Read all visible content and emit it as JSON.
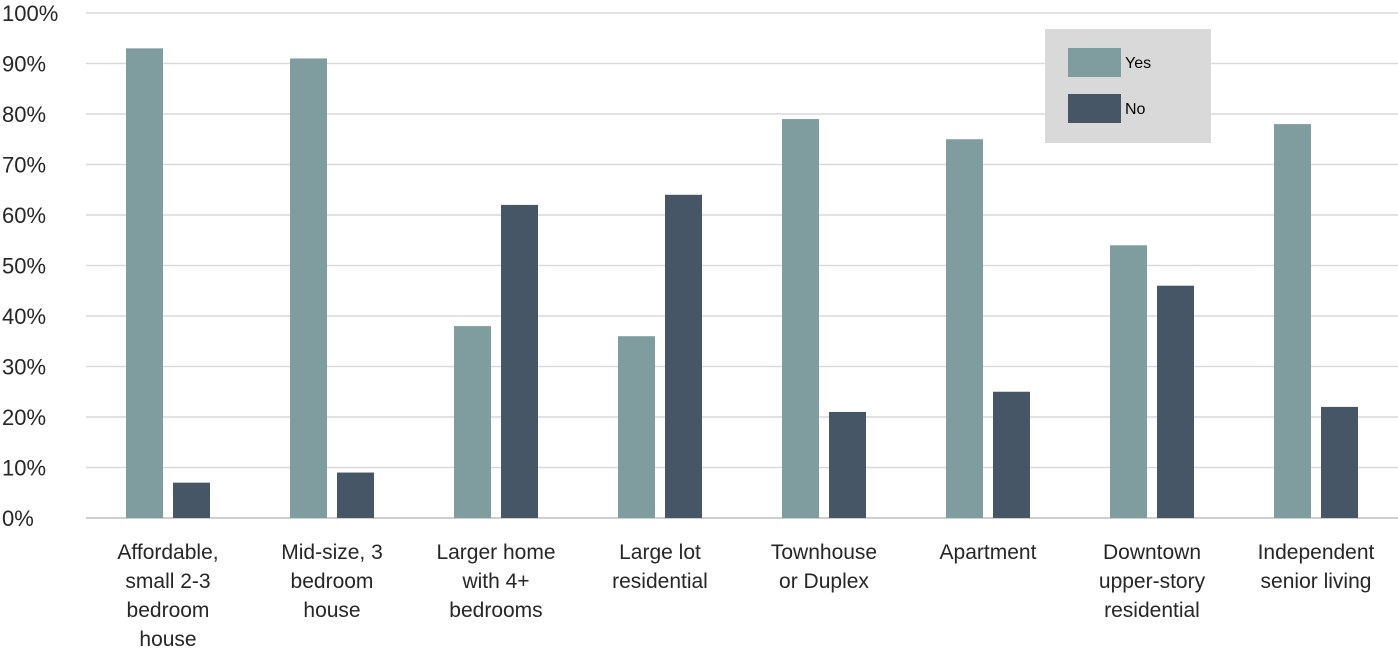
{
  "chart_data": {
    "type": "bar",
    "categories": [
      "Affordable, small 2-3 bedroom house",
      "Mid-size, 3 bedroom house",
      "Larger home with 4+ bedrooms",
      "Large lot residential",
      "Townhouse or Duplex",
      "Apartment",
      "Downtown upper-story residential",
      "Independent senior living"
    ],
    "category_lines": [
      [
        "Affordable,",
        "small 2-3",
        "bedroom",
        "house"
      ],
      [
        "Mid-size, 3",
        "bedroom",
        "house"
      ],
      [
        "Larger home",
        "with 4+",
        "bedrooms"
      ],
      [
        "Large lot",
        "residential"
      ],
      [
        "Townhouse",
        "or Duplex"
      ],
      [
        "Apartment"
      ],
      [
        "Downtown",
        "upper-story",
        "residential"
      ],
      [
        "Independent",
        "senior living"
      ]
    ],
    "series": [
      {
        "name": "Yes",
        "color": "#7f9c9e",
        "values": [
          93,
          91,
          38,
          36,
          79,
          75,
          54,
          78
        ]
      },
      {
        "name": "No",
        "color": "#475667",
        "values": [
          7,
          9,
          62,
          64,
          21,
          25,
          46,
          22
        ]
      }
    ],
    "ylim": [
      0,
      100
    ],
    "yticks": [
      "0%",
      "10%",
      "20%",
      "30%",
      "40%",
      "50%",
      "60%",
      "70%",
      "80%",
      "90%",
      "100%"
    ],
    "grid": true,
    "legend": {
      "position": "top-right",
      "background": "#d9d9d9"
    },
    "title": "",
    "xlabel": "",
    "ylabel": ""
  }
}
